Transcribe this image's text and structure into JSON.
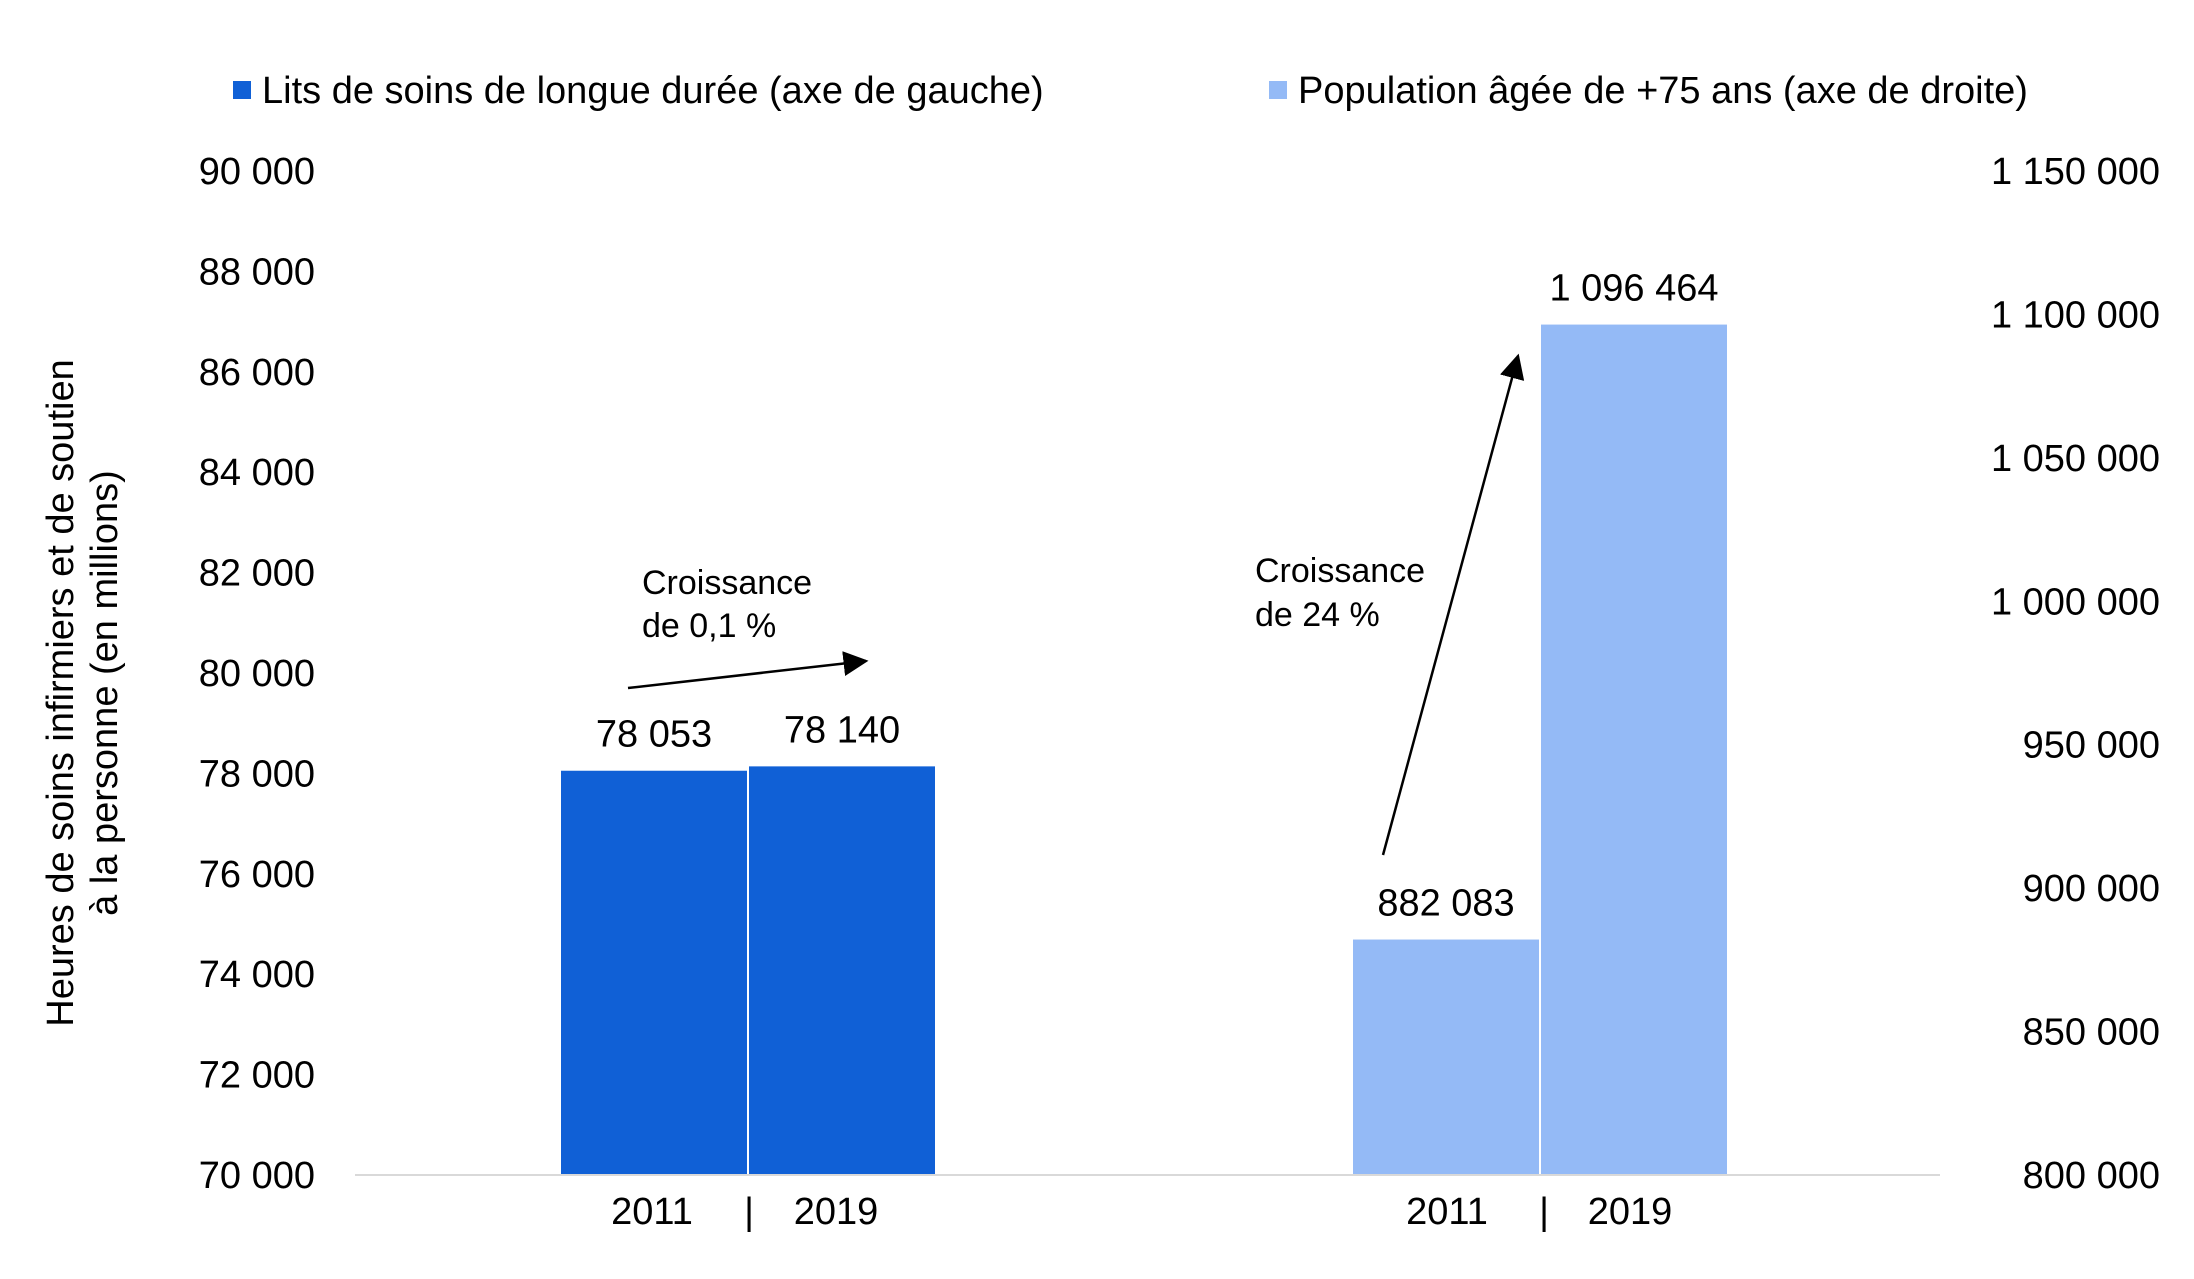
{
  "chart_data": {
    "type": "bar",
    "legend": {
      "placement": "top",
      "items": [
        {
          "label": "Lits de soins de longue durée (axe de gauche)",
          "color": "#1060D6"
        },
        {
          "label": "Population âgée de +75 ans (axe de droite)",
          "color": "#94BAF6"
        }
      ]
    },
    "ylabel_left": [
      "Heures de soins infirmiers et de soutien",
      "à la personne  (en millions)"
    ],
    "yaxis_left": {
      "ylim": [
        70000,
        90000
      ],
      "ticks": [
        "90 000",
        "88 000",
        "86 000",
        "84 000",
        "82 000",
        "80 000",
        "78 000",
        "76 000",
        "74 000",
        "72 000",
        "70 000"
      ]
    },
    "yaxis_right": {
      "ylim": [
        800000,
        1150000
      ],
      "ticks": [
        "1 150 000",
        "1 100 000",
        "1 050 000",
        "1 000 000",
        "950 000",
        "900 000",
        "850 000",
        "800 000"
      ]
    },
    "groups": [
      {
        "series": "Lits de soins de longue durée (axe de gauche)",
        "axis": "left",
        "color": "#1060D6",
        "categories": [
          "2011",
          "2019"
        ],
        "values": [
          78053,
          78140
        ],
        "labels": [
          "78 053",
          "78 140"
        ],
        "separator": "|",
        "annotation": [
          "Croissance",
          "de 0,1 %"
        ]
      },
      {
        "series": "Population âgée de +75 ans (axe de droite)",
        "axis": "right",
        "color": "#94BAF6",
        "categories": [
          "2011",
          "2019"
        ],
        "values": [
          882083,
          1096464
        ],
        "labels": [
          "882 083",
          "1 096 464"
        ],
        "separator": "|",
        "annotation": [
          "Croissance",
          "de 24 %"
        ]
      }
    ],
    "grid": false
  }
}
